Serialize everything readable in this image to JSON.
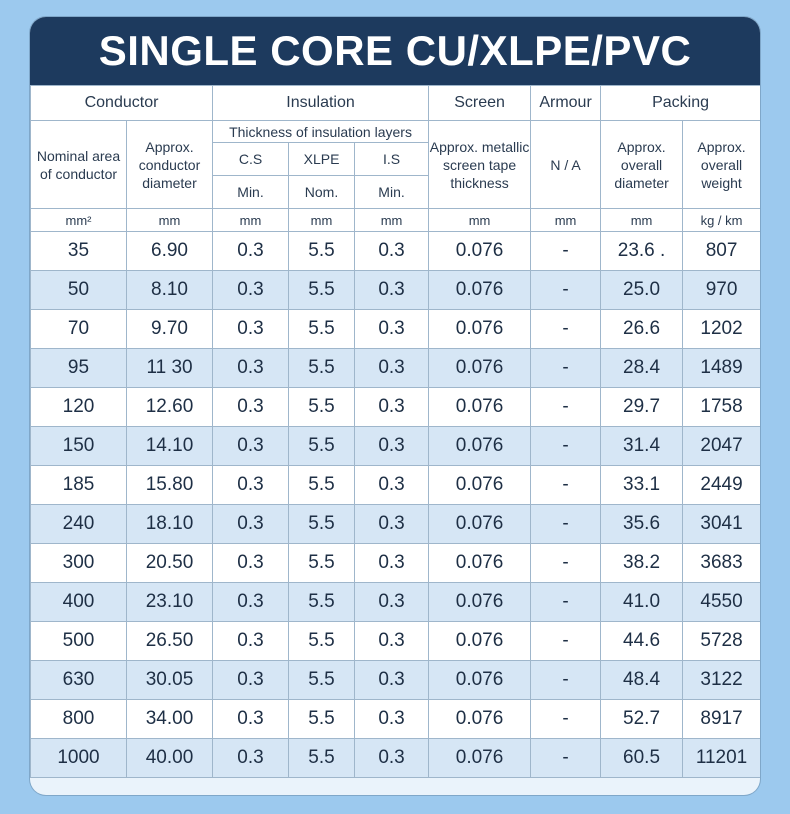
{
  "title": "SINGLE CORE CU/XLPE/PVC",
  "headers": {
    "groups": [
      "Conductor",
      "Insulation",
      "Screen",
      "Armour",
      "Packing"
    ],
    "nominal_area": "Nominal area of conductor",
    "conductor_diameter": "Approx. conductor diameter",
    "thickness_layers": "Thickness of insulation layers",
    "cs": "C.S",
    "xlpe": "XLPE",
    "is": "I.S",
    "cs_sub": "Min.",
    "xlpe_sub": "Nom.",
    "is_sub": "Min.",
    "screen_tape": "Approx. metallic screen tape thickness",
    "armour": "N / A",
    "overall_diameter": "Approx. overall diameter",
    "overall_weight": "Approx. overall weight"
  },
  "units": [
    "mm²",
    "mm",
    "mm",
    "mm",
    "mm",
    "mm",
    "mm",
    "mm",
    "kg / km"
  ],
  "rows": [
    [
      "35",
      "6.90",
      "0.3",
      "5.5",
      "0.3",
      "0.076",
      "-",
      "23.6 .",
      "807"
    ],
    [
      "50",
      "8.10",
      "0.3",
      "5.5",
      "0.3",
      "0.076",
      "-",
      "25.0",
      "970"
    ],
    [
      "70",
      "9.70",
      "0.3",
      "5.5",
      "0.3",
      "0.076",
      "-",
      "26.6",
      "1202"
    ],
    [
      "95",
      "11 30",
      "0.3",
      "5.5",
      "0.3",
      "0.076",
      "-",
      "28.4",
      "1489"
    ],
    [
      "120",
      "12.60",
      "0.3",
      "5.5",
      "0.3",
      "0.076",
      "-",
      "29.7",
      "1758"
    ],
    [
      "150",
      "14.10",
      "0.3",
      "5.5",
      "0.3",
      "0.076",
      "-",
      "31.4",
      "2047"
    ],
    [
      "185",
      "15.80",
      "0.3",
      "5.5",
      "0.3",
      "0.076",
      "-",
      "33.1",
      "2449"
    ],
    [
      "240",
      "18.10",
      "0.3",
      "5.5",
      "0.3",
      "0.076",
      "-",
      "35.6",
      "3041"
    ],
    [
      "300",
      "20.50",
      "0.3",
      "5.5",
      "0.3",
      "0.076",
      "-",
      "38.2",
      "3683"
    ],
    [
      "400",
      "23.10",
      "0.3",
      "5.5",
      "0.3",
      "0.076",
      "-",
      "41.0",
      "4550"
    ],
    [
      "500",
      "26.50",
      "0.3",
      "5.5",
      "0.3",
      "0.076",
      "-",
      "44.6",
      "5728"
    ],
    [
      "630",
      "30.05",
      "0.3",
      "5.5",
      "0.3",
      "0.076",
      "-",
      "48.4",
      "3122"
    ],
    [
      "800",
      "34.00",
      "0.3",
      "5.5",
      "0.3",
      "0.076",
      "-",
      "52.7",
      "8917"
    ],
    [
      "1000",
      "40.00",
      "0.3",
      "5.5",
      "0.3",
      "0.076",
      "-",
      "60.5",
      "11201"
    ]
  ]
}
